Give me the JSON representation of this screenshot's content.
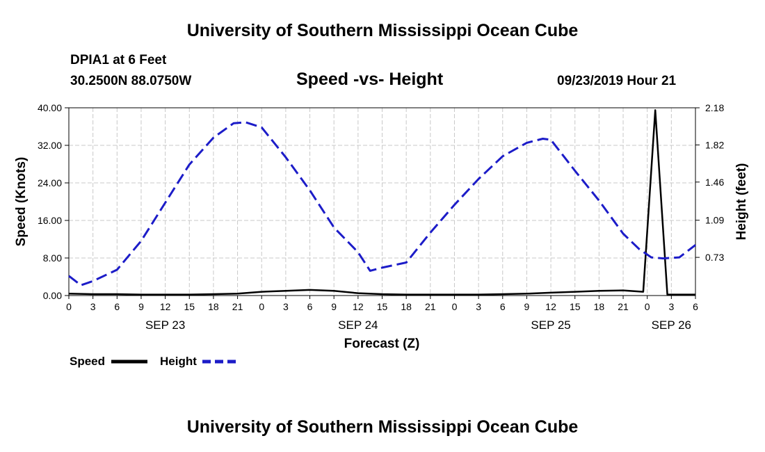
{
  "header": {
    "title": "University of Southern Mississippi Ocean Cube",
    "station": "DPIA1 at 6 Feet",
    "coordinates": "30.2500N 88.0750W",
    "subtitle": "Speed -vs- Height",
    "datetime": "09/23/2019 Hour 21"
  },
  "footer": {
    "title": "University of Southern Mississippi Ocean Cube"
  },
  "chart_data": {
    "type": "line",
    "title": "Speed -vs- Height",
    "xlabel": "Forecast (Z)",
    "ylabel_left": "Speed (Knots)",
    "ylabel_right": "Height (feet)",
    "x_range_hours": [
      0,
      78
    ],
    "x_ticks": [
      {
        "h": 0,
        "label": "0"
      },
      {
        "h": 3,
        "label": "3"
      },
      {
        "h": 6,
        "label": "6"
      },
      {
        "h": 9,
        "label": "9"
      },
      {
        "h": 12,
        "label": "12"
      },
      {
        "h": 15,
        "label": "15"
      },
      {
        "h": 18,
        "label": "18"
      },
      {
        "h": 21,
        "label": "21"
      },
      {
        "h": 24,
        "label": "0"
      },
      {
        "h": 27,
        "label": "3"
      },
      {
        "h": 30,
        "label": "6"
      },
      {
        "h": 33,
        "label": "9"
      },
      {
        "h": 36,
        "label": "12"
      },
      {
        "h": 39,
        "label": "15"
      },
      {
        "h": 42,
        "label": "18"
      },
      {
        "h": 45,
        "label": "21"
      },
      {
        "h": 48,
        "label": "0"
      },
      {
        "h": 51,
        "label": "3"
      },
      {
        "h": 54,
        "label": "6"
      },
      {
        "h": 57,
        "label": "9"
      },
      {
        "h": 60,
        "label": "12"
      },
      {
        "h": 63,
        "label": "15"
      },
      {
        "h": 66,
        "label": "18"
      },
      {
        "h": 69,
        "label": "21"
      },
      {
        "h": 72,
        "label": "0"
      },
      {
        "h": 75,
        "label": "3"
      },
      {
        "h": 78,
        "label": "6"
      }
    ],
    "date_labels": [
      {
        "h": 12,
        "label": "SEP 23"
      },
      {
        "h": 36,
        "label": "SEP 24"
      },
      {
        "h": 60,
        "label": "SEP 25"
      },
      {
        "h": 75,
        "label": "SEP 26"
      }
    ],
    "y_left": {
      "min": 0,
      "max": 40,
      "ticks": [
        {
          "v": 0,
          "label": "0.00"
        },
        {
          "v": 8,
          "label": "8.00"
        },
        {
          "v": 16,
          "label": "16.00"
        },
        {
          "v": 24,
          "label": "24.00"
        },
        {
          "v": 32,
          "label": "32.00"
        },
        {
          "v": 40,
          "label": "40.00"
        }
      ]
    },
    "y_right": {
      "min": 0.36,
      "max": 2.18,
      "ticks": [
        {
          "v": 0.73,
          "label": "0.73"
        },
        {
          "v": 1.09,
          "label": "1.09"
        },
        {
          "v": 1.46,
          "label": "1.46"
        },
        {
          "v": 1.82,
          "label": "1.82"
        },
        {
          "v": 2.18,
          "label": "2.18"
        }
      ]
    },
    "series": [
      {
        "name": "Speed",
        "axis": "left",
        "color": "#000000",
        "style": "solid",
        "points": [
          [
            0,
            0.4
          ],
          [
            3,
            0.3
          ],
          [
            6,
            0.3
          ],
          [
            9,
            0.2
          ],
          [
            12,
            0.2
          ],
          [
            15,
            0.2
          ],
          [
            18,
            0.3
          ],
          [
            21,
            0.4
          ],
          [
            24,
            0.8
          ],
          [
            27,
            1.0
          ],
          [
            30,
            1.2
          ],
          [
            33,
            1.0
          ],
          [
            36,
            0.5
          ],
          [
            39,
            0.3
          ],
          [
            42,
            0.2
          ],
          [
            45,
            0.2
          ],
          [
            48,
            0.2
          ],
          [
            51,
            0.2
          ],
          [
            54,
            0.3
          ],
          [
            57,
            0.4
          ],
          [
            60,
            0.6
          ],
          [
            63,
            0.8
          ],
          [
            66,
            1.0
          ],
          [
            69,
            1.1
          ],
          [
            71.5,
            0.8
          ],
          [
            73,
            39.5
          ],
          [
            74.5,
            0.2
          ],
          [
            78,
            0.2
          ]
        ]
      },
      {
        "name": "Height",
        "axis": "right",
        "color": "#1c1cc8",
        "style": "dashed",
        "points": [
          [
            0,
            0.55
          ],
          [
            1.5,
            0.46
          ],
          [
            3,
            0.5
          ],
          [
            6,
            0.61
          ],
          [
            9,
            0.89
          ],
          [
            12,
            1.26
          ],
          [
            15,
            1.63
          ],
          [
            18,
            1.89
          ],
          [
            20.5,
            2.03
          ],
          [
            22,
            2.04
          ],
          [
            24,
            1.99
          ],
          [
            27,
            1.7
          ],
          [
            30,
            1.38
          ],
          [
            33,
            1.02
          ],
          [
            36,
            0.78
          ],
          [
            37.5,
            0.6
          ],
          [
            39,
            0.63
          ],
          [
            42,
            0.68
          ],
          [
            45,
            0.97
          ],
          [
            48,
            1.24
          ],
          [
            51,
            1.49
          ],
          [
            54,
            1.71
          ],
          [
            57,
            1.84
          ],
          [
            59,
            1.88
          ],
          [
            60,
            1.87
          ],
          [
            63,
            1.57
          ],
          [
            66,
            1.28
          ],
          [
            69,
            0.96
          ],
          [
            71,
            0.81
          ],
          [
            72.5,
            0.73
          ],
          [
            74,
            0.72
          ],
          [
            76,
            0.73
          ],
          [
            78,
            0.85
          ]
        ]
      }
    ],
    "legend": {
      "placement": "bottom-left",
      "items": [
        {
          "label": "Speed",
          "color": "#000000",
          "style": "solid"
        },
        {
          "label": "Height",
          "color": "#1c1cc8",
          "style": "dashed"
        }
      ]
    },
    "grid": true
  }
}
